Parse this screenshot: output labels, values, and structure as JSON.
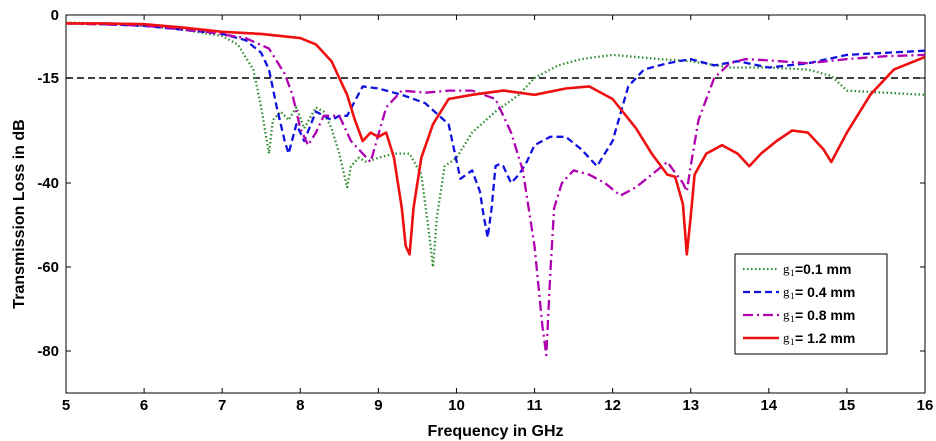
{
  "chart_data": {
    "type": "line",
    "xlabel": "Frequency in GHz",
    "ylabel": "Transmission  Loss in dB",
    "xlim": [
      5,
      16
    ],
    "ylim": [
      -90,
      0
    ],
    "xticks": [
      "5",
      "6",
      "7",
      "8",
      "9",
      "10",
      "11",
      "12",
      "13",
      "14",
      "15",
      "16"
    ],
    "yticks": [
      {
        "value": 0,
        "label": "0"
      },
      {
        "value": -15,
        "label": "-15"
      },
      {
        "value": -40,
        "label": "-40"
      },
      {
        "value": -60,
        "label": "-60"
      },
      {
        "value": -80,
        "label": "-80"
      }
    ],
    "grid": false,
    "legend_position": "bottom-right",
    "reference_line": {
      "y": -15,
      "color": "#000000",
      "style": "dashed"
    },
    "series": [
      {
        "legend_symbol": "g",
        "legend_sub": "1",
        "legend_text": "=0.1 mm",
        "color": "#2e8b2e",
        "style": "dotted",
        "x": [
          5,
          5.5,
          6,
          6.5,
          7,
          7.2,
          7.4,
          7.5,
          7.6,
          7.65,
          7.75,
          7.85,
          7.95,
          8.05,
          8.2,
          8.3,
          8.4,
          8.5,
          8.6,
          8.65,
          8.75,
          8.85,
          9,
          9.2,
          9.4,
          9.55,
          9.65,
          9.7,
          9.75,
          9.85,
          10,
          10.2,
          10.5,
          10.8,
          11,
          11.3,
          11.6,
          12,
          12.3,
          12.6,
          13,
          13.5,
          14,
          14.5,
          14.8,
          15,
          15.5,
          16
        ],
        "y": [
          -1.8,
          -2.0,
          -2.5,
          -3.5,
          -5,
          -7,
          -13,
          -22,
          -33,
          -25,
          -23,
          -25,
          -22,
          -27,
          -22,
          -23,
          -27,
          -33,
          -41,
          -36,
          -34,
          -35,
          -34,
          -33,
          -33,
          -38,
          -52,
          -60,
          -48,
          -36,
          -34,
          -28,
          -23,
          -19,
          -15,
          -12,
          -10.5,
          -9.5,
          -10,
          -10.5,
          -11,
          -12.5,
          -12.5,
          -13,
          -14.5,
          -18,
          -18.5,
          -19
        ]
      },
      {
        "legend_symbol": "g",
        "legend_sub": "1",
        "legend_text": "= 0.4 mm",
        "color": "#1010e0",
        "style": "dashed",
        "x": [
          5,
          5.5,
          6,
          6.5,
          7,
          7.3,
          7.5,
          7.6,
          7.7,
          7.8,
          7.85,
          7.95,
          8.05,
          8.2,
          8.4,
          8.5,
          8.6,
          8.8,
          9,
          9.3,
          9.6,
          9.9,
          10.05,
          10.2,
          10.3,
          10.35,
          10.4,
          10.45,
          10.5,
          10.55,
          10.6,
          10.7,
          10.8,
          10.9,
          11,
          11.2,
          11.4,
          11.6,
          11.8,
          12,
          12.2,
          12.4,
          12.7,
          13,
          13.3,
          13.6,
          14,
          14.5,
          15,
          15.5,
          16
        ],
        "y": [
          -2,
          -2.2,
          -2.6,
          -3.5,
          -4.5,
          -6,
          -9,
          -13,
          -22,
          -30,
          -33,
          -26,
          -30,
          -23,
          -25,
          -24,
          -24,
          -17,
          -17.5,
          -19,
          -21,
          -26,
          -39,
          -37,
          -42,
          -48,
          -53,
          -46,
          -36,
          -35.5,
          -36,
          -40,
          -38,
          -35,
          -31,
          -29,
          -29,
          -32,
          -36,
          -30,
          -17,
          -13,
          -11.5,
          -10.5,
          -12,
          -11,
          -12.5,
          -11.5,
          -9.5,
          -9,
          -8.5
        ]
      },
      {
        "legend_symbol": "g",
        "legend_sub": "1",
        "legend_text": "= 0.8 mm",
        "color": "#b000b0",
        "style": "dashdot",
        "x": [
          5,
          6,
          6.8,
          7.3,
          7.6,
          7.8,
          7.9,
          8.0,
          8.1,
          8.2,
          8.3,
          8.5,
          8.65,
          8.75,
          8.9,
          9.1,
          9.3,
          9.6,
          9.9,
          10.2,
          10.5,
          10.7,
          10.85,
          11.0,
          11.1,
          11.15,
          11.2,
          11.25,
          11.35,
          11.5,
          11.7,
          11.9,
          12.1,
          12.3,
          12.5,
          12.7,
          12.9,
          12.95,
          13.0,
          13.1,
          13.3,
          13.5,
          13.7,
          14,
          14.5,
          15,
          15.5,
          16
        ],
        "y": [
          -2,
          -2.5,
          -4,
          -5.5,
          -8,
          -14,
          -19,
          -27,
          -31,
          -28,
          -24,
          -24,
          -30,
          -32,
          -35,
          -22,
          -18,
          -18.5,
          -18,
          -18,
          -20,
          -28,
          -37,
          -55,
          -74,
          -81,
          -62,
          -46,
          -40,
          -37,
          -38,
          -40,
          -43,
          -41,
          -38,
          -35,
          -40,
          -42,
          -36,
          -25,
          -15,
          -11.5,
          -10.5,
          -10.8,
          -11.5,
          -10.5,
          -9.8,
          -9.5
        ]
      },
      {
        "legend_symbol": "g",
        "legend_sub": "1",
        "legend_text": "= 1.2 mm",
        "color": "#ee1010",
        "style": "solid",
        "x": [
          5,
          5.5,
          6,
          6.5,
          7,
          7.5,
          8.0,
          8.2,
          8.4,
          8.5,
          8.6,
          8.7,
          8.8,
          8.9,
          9.0,
          9.1,
          9.2,
          9.3,
          9.35,
          9.4,
          9.45,
          9.55,
          9.7,
          9.9,
          10.2,
          10.6,
          11.0,
          11.4,
          11.7,
          12.0,
          12.3,
          12.5,
          12.7,
          12.8,
          12.9,
          12.95,
          13.0,
          13.05,
          13.2,
          13.4,
          13.6,
          13.75,
          13.9,
          14.1,
          14.3,
          14.5,
          14.7,
          14.8,
          15.0,
          15.3,
          15.6,
          16
        ],
        "y": [
          -2,
          -2,
          -2.2,
          -3,
          -4,
          -4.5,
          -5.5,
          -7,
          -11,
          -15,
          -19,
          -25,
          -30,
          -28,
          -29,
          -28,
          -34,
          -46,
          -55,
          -57,
          -46,
          -34,
          -26,
          -20,
          -19,
          -18,
          -19,
          -17.5,
          -17,
          -20,
          -27,
          -33,
          -38,
          -38.5,
          -45,
          -57,
          -48,
          -38,
          -33,
          -31,
          -33,
          -36,
          -33,
          -30,
          -27.5,
          -28,
          -32,
          -35,
          -28,
          -19,
          -13,
          -10
        ]
      }
    ]
  }
}
